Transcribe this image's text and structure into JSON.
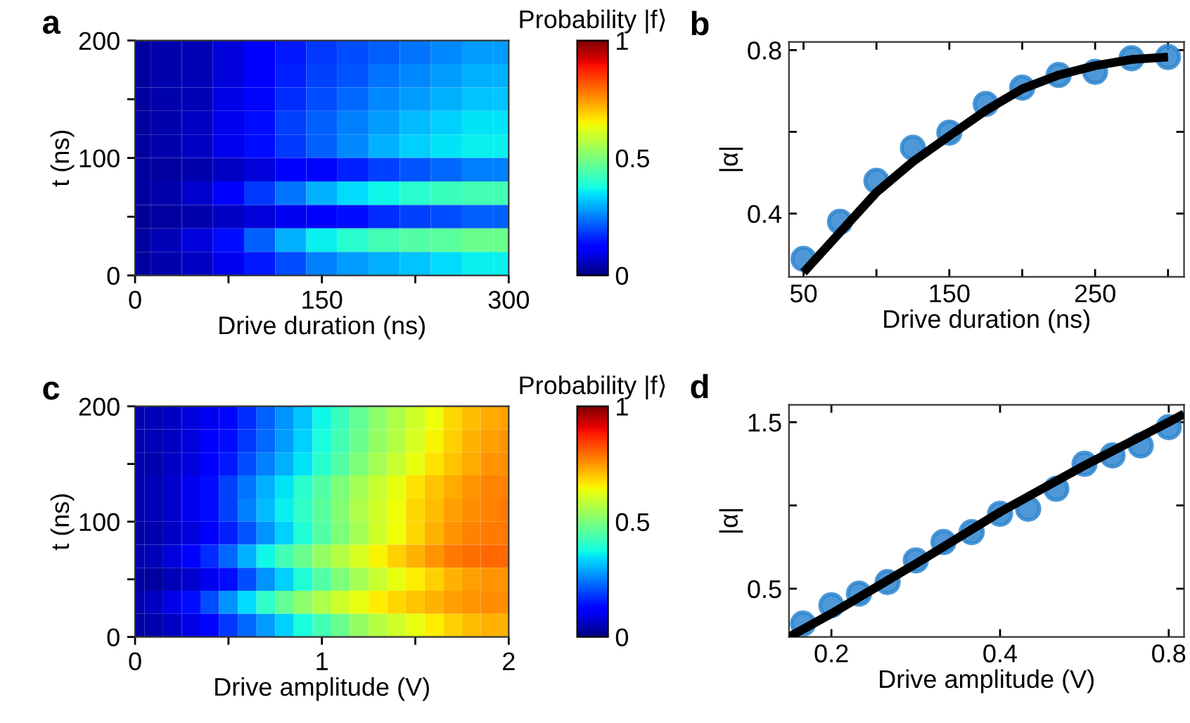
{
  "chart_data": [
    {
      "type": "heatmap",
      "title": "a",
      "xlabel": "Drive duration (ns)",
      "ylabel": "t (ns)",
      "clabel": "Probability |f⟩",
      "x": [
        0,
        25,
        50,
        75,
        100,
        125,
        150,
        175,
        200,
        225,
        250,
        275,
        300
      ],
      "y": [
        190,
        170,
        150,
        130,
        110,
        90,
        70,
        50,
        30,
        10
      ],
      "cells": [
        [
          0.03,
          0.04,
          0.05,
          0.08,
          0.12,
          0.15,
          0.18,
          0.2,
          0.22,
          0.24,
          0.26,
          0.28,
          0.28
        ],
        [
          0.03,
          0.04,
          0.05,
          0.08,
          0.12,
          0.16,
          0.19,
          0.21,
          0.24,
          0.26,
          0.28,
          0.3,
          0.3
        ],
        [
          0.03,
          0.04,
          0.05,
          0.09,
          0.13,
          0.17,
          0.2,
          0.23,
          0.26,
          0.28,
          0.3,
          0.32,
          0.32
        ],
        [
          0.03,
          0.04,
          0.06,
          0.1,
          0.14,
          0.19,
          0.22,
          0.25,
          0.28,
          0.31,
          0.33,
          0.35,
          0.35
        ],
        [
          0.03,
          0.04,
          0.06,
          0.1,
          0.14,
          0.18,
          0.22,
          0.26,
          0.3,
          0.33,
          0.35,
          0.36,
          0.36
        ],
        [
          0.03,
          0.03,
          0.04,
          0.06,
          0.08,
          0.11,
          0.13,
          0.16,
          0.19,
          0.21,
          0.23,
          0.25,
          0.25
        ],
        [
          0.03,
          0.04,
          0.07,
          0.12,
          0.18,
          0.24,
          0.3,
          0.34,
          0.37,
          0.4,
          0.42,
          0.43,
          0.43
        ],
        [
          0.02,
          0.03,
          0.04,
          0.06,
          0.08,
          0.1,
          0.12,
          0.14,
          0.17,
          0.19,
          0.2,
          0.22,
          0.22
        ],
        [
          0.03,
          0.05,
          0.08,
          0.14,
          0.22,
          0.3,
          0.36,
          0.4,
          0.43,
          0.45,
          0.46,
          0.48,
          0.48
        ],
        [
          0.03,
          0.04,
          0.06,
          0.1,
          0.15,
          0.2,
          0.25,
          0.28,
          0.3,
          0.32,
          0.34,
          0.36,
          0.36
        ]
      ],
      "xlim": [
        0,
        300
      ],
      "ylim": [
        0,
        200
      ],
      "xticks": [
        0,
        {
          "value": 75,
          "label": null
        },
        150,
        {
          "value": 225,
          "label": null
        },
        300
      ],
      "yticks": [
        0,
        {
          "value": 50,
          "label": null
        },
        100,
        {
          "value": 150,
          "label": null
        },
        200
      ],
      "clim": [
        0,
        1
      ],
      "cticks": [
        0,
        0.5,
        1
      ]
    },
    {
      "type": "scatter",
      "title": "b",
      "xlabel": "Drive duration (ns)",
      "ylabel": "|α|",
      "series": [
        {
          "type": "scatter",
          "color": "#2f86d0",
          "marker": "circle",
          "x": [
            50,
            75,
            100,
            125,
            150,
            175,
            200,
            225,
            250,
            275,
            300
          ],
          "values": [
            0.289,
            0.38,
            0.48,
            0.561,
            0.598,
            0.668,
            0.708,
            0.739,
            0.747,
            0.78,
            0.783
          ]
        },
        {
          "type": "line",
          "color": "#000000",
          "marker": "none",
          "x": [
            50,
            75,
            100,
            125,
            150,
            175,
            200,
            225,
            250,
            275,
            300
          ],
          "values": [
            0.256,
            0.354,
            0.452,
            0.527,
            0.59,
            0.652,
            0.705,
            0.739,
            0.762,
            0.777,
            0.783
          ]
        }
      ],
      "xlim": [
        40,
        311
      ],
      "ylim": [
        0.245,
        0.82
      ],
      "xticks": [
        50,
        {
          "value": 100,
          "label": null
        },
        150,
        {
          "value": 200,
          "label": null
        },
        250,
        {
          "value": 300,
          "label": null
        }
      ],
      "yticks": [
        0.4,
        {
          "value": 0.6,
          "label": null
        },
        0.8
      ]
    },
    {
      "type": "heatmap",
      "title": "c",
      "xlabel": "Drive amplitude (V)",
      "ylabel": "t (ns)",
      "clabel": "Probability |f⟩",
      "x": [
        0,
        0.1,
        0.2,
        0.3,
        0.4,
        0.5,
        0.6,
        0.7,
        0.8,
        0.9,
        1.0,
        1.1,
        1.2,
        1.3,
        1.4,
        1.5,
        1.6,
        1.7,
        1.8,
        1.9,
        2.0
      ],
      "y": [
        190,
        170,
        150,
        130,
        110,
        90,
        70,
        50,
        30,
        10
      ],
      "cells": [
        [
          0.04,
          0.05,
          0.06,
          0.08,
          0.1,
          0.13,
          0.17,
          0.22,
          0.27,
          0.32,
          0.37,
          0.42,
          0.47,
          0.52,
          0.56,
          0.6,
          0.64,
          0.68,
          0.71,
          0.73,
          0.74
        ],
        [
          0.04,
          0.05,
          0.06,
          0.08,
          0.11,
          0.14,
          0.18,
          0.23,
          0.28,
          0.33,
          0.38,
          0.43,
          0.48,
          0.53,
          0.57,
          0.61,
          0.65,
          0.69,
          0.72,
          0.74,
          0.75
        ],
        [
          0.04,
          0.04,
          0.06,
          0.08,
          0.11,
          0.15,
          0.2,
          0.25,
          0.3,
          0.35,
          0.4,
          0.45,
          0.5,
          0.55,
          0.59,
          0.63,
          0.67,
          0.7,
          0.73,
          0.75,
          0.76
        ],
        [
          0.04,
          0.05,
          0.07,
          0.1,
          0.14,
          0.19,
          0.24,
          0.3,
          0.35,
          0.4,
          0.45,
          0.5,
          0.55,
          0.59,
          0.63,
          0.67,
          0.7,
          0.73,
          0.75,
          0.77,
          0.77
        ],
        [
          0.04,
          0.05,
          0.07,
          0.1,
          0.14,
          0.19,
          0.25,
          0.31,
          0.36,
          0.41,
          0.46,
          0.51,
          0.56,
          0.6,
          0.64,
          0.68,
          0.71,
          0.74,
          0.76,
          0.77,
          0.78
        ],
        [
          0.03,
          0.04,
          0.06,
          0.08,
          0.12,
          0.16,
          0.21,
          0.27,
          0.33,
          0.39,
          0.45,
          0.5,
          0.55,
          0.6,
          0.64,
          0.68,
          0.72,
          0.75,
          0.77,
          0.78,
          0.78
        ],
        [
          0.04,
          0.05,
          0.08,
          0.12,
          0.17,
          0.23,
          0.3,
          0.37,
          0.43,
          0.48,
          0.53,
          0.57,
          0.61,
          0.65,
          0.69,
          0.72,
          0.75,
          0.78,
          0.79,
          0.8,
          0.8
        ],
        [
          0.03,
          0.03,
          0.05,
          0.07,
          0.1,
          0.14,
          0.2,
          0.27,
          0.33,
          0.39,
          0.45,
          0.5,
          0.55,
          0.59,
          0.63,
          0.66,
          0.69,
          0.72,
          0.74,
          0.75,
          0.75
        ],
        [
          0.04,
          0.06,
          0.09,
          0.14,
          0.2,
          0.27,
          0.34,
          0.41,
          0.47,
          0.52,
          0.56,
          0.6,
          0.63,
          0.66,
          0.68,
          0.7,
          0.72,
          0.74,
          0.75,
          0.76,
          0.76
        ],
        [
          0.03,
          0.04,
          0.06,
          0.09,
          0.13,
          0.18,
          0.23,
          0.28,
          0.33,
          0.38,
          0.43,
          0.48,
          0.53,
          0.57,
          0.6,
          0.63,
          0.66,
          0.69,
          0.71,
          0.72,
          0.72
        ]
      ],
      "xlim": [
        0,
        2
      ],
      "ylim": [
        0,
        200
      ],
      "xticks": [
        0,
        {
          "value": 0.5,
          "label": null
        },
        1,
        {
          "value": 1.5,
          "label": null
        },
        2
      ],
      "yticks": [
        0,
        {
          "value": 50,
          "label": null
        },
        100,
        {
          "value": 150,
          "label": null
        },
        200
      ],
      "clim": [
        0,
        1
      ],
      "cticks": [
        0,
        0.5,
        1
      ]
    },
    {
      "type": "scatter",
      "title": "d",
      "xlabel": "Drive amplitude (V)",
      "ylabel": "|α|",
      "log": "x",
      "series": [
        {
          "type": "scatter",
          "color": "#2f86d0",
          "marker": "circle",
          "x": [
            0.178,
            0.2,
            0.224,
            0.252,
            0.283,
            0.317,
            0.356,
            0.4,
            0.449,
            0.504,
            0.566,
            0.635,
            0.713,
            0.8
          ],
          "values": [
            0.29,
            0.4,
            0.47,
            0.54,
            0.67,
            0.78,
            0.84,
            0.95,
            0.98,
            1.1,
            1.25,
            1.3,
            1.36,
            1.47
          ]
        },
        {
          "type": "line",
          "color": "#000000",
          "marker": "none",
          "x": [
            0.168,
            0.2,
            0.283,
            0.4,
            0.566,
            0.8,
            0.852
          ],
          "values": [
            0.21,
            0.35,
            0.65,
            0.96,
            1.24,
            1.5,
            1.55
          ]
        }
      ],
      "xlim": [
        0.168,
        0.852
      ],
      "ylim": [
        0.21,
        1.604
      ],
      "xticks": [
        0.2,
        0.4,
        0.8
      ],
      "yticks": [
        0.5,
        {
          "value": 1.0,
          "label": null
        },
        1.5
      ]
    }
  ]
}
